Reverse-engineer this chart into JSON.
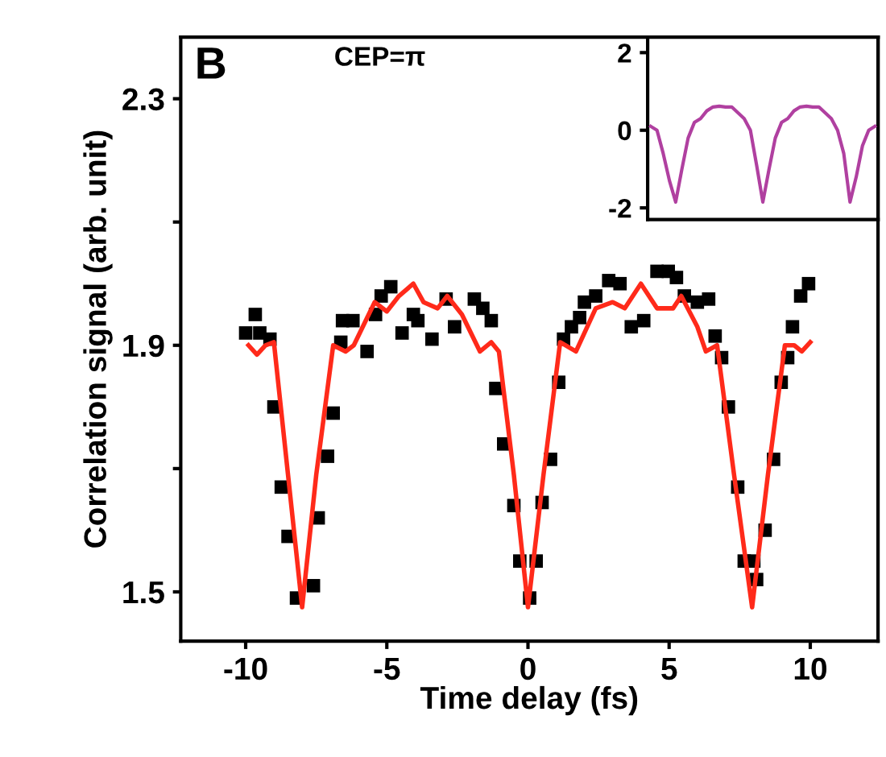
{
  "chart_data": [
    {
      "type": "scatter",
      "xlabel": "Time delay (fs)",
      "ylabel": "Correlation signal (arb. unit)",
      "xlim": [
        -12.3,
        12.4
      ],
      "xticks": [
        -10,
        -5,
        0,
        5,
        10
      ],
      "ylim": [
        1.42,
        2.4
      ],
      "yticks": [
        2.3,
        {
          "value": 2.1,
          "label": null
        },
        1.9,
        {
          "value": 1.7,
          "label": null
        },
        1.5
      ],
      "grid": false,
      "legend": false,
      "annotations": [
        "B",
        "CEP=π"
      ],
      "series": [
        {
          "type": "scatter",
          "marker": "square",
          "color": "#000000",
          "x": [
            -10.0,
            -9.66,
            -9.5,
            -9.14,
            -9.0,
            -8.74,
            -8.5,
            -8.2,
            -7.6,
            -7.43,
            -7.1,
            -6.9,
            -6.63,
            -6.57,
            -6.2,
            -5.7,
            -5.4,
            -5.2,
            -4.86,
            -4.46,
            -4.06,
            -3.9,
            -3.4,
            -2.9,
            -2.6,
            -1.9,
            -1.6,
            -1.3,
            -1.14,
            -0.86,
            -0.5,
            -0.29,
            0.06,
            0.29,
            0.5,
            0.8,
            1.09,
            1.26,
            1.54,
            1.83,
            2.0,
            2.4,
            2.86,
            3.26,
            3.66,
            4.1,
            4.57,
            4.97,
            5.26,
            5.54,
            6.0,
            6.4,
            6.63,
            6.86,
            7.1,
            7.43,
            7.66,
            8.0,
            8.1,
            8.4,
            8.7,
            8.97,
            9.2,
            9.37,
            9.66,
            9.94
          ],
          "values": [
            1.92,
            1.95,
            1.92,
            1.91,
            1.8,
            1.67,
            1.59,
            1.49,
            1.51,
            1.62,
            1.72,
            1.79,
            1.905,
            1.94,
            1.94,
            1.89,
            1.95,
            1.98,
            1.995,
            1.92,
            1.95,
            1.94,
            1.91,
            1.975,
            1.93,
            1.975,
            1.96,
            1.94,
            1.83,
            1.74,
            1.64,
            1.55,
            1.49,
            1.55,
            1.645,
            1.715,
            1.84,
            1.91,
            1.93,
            1.945,
            1.97,
            1.98,
            2.005,
            2.0,
            1.93,
            1.94,
            2.02,
            2.02,
            2.01,
            1.98,
            1.97,
            1.975,
            1.915,
            1.88,
            1.8,
            1.67,
            1.55,
            1.55,
            1.52,
            1.6,
            1.715,
            1.84,
            1.88,
            1.93,
            1.98,
            2.0
          ]
        },
        {
          "type": "line",
          "marker": "none",
          "line_style": "solid",
          "color": "#ff2a1a",
          "x": [
            -9.9,
            -9.6,
            -9.3,
            -9.0,
            -8.5,
            -8.0,
            -7.5,
            -6.9,
            -6.46,
            -6.17,
            -5.43,
            -5.0,
            -4.57,
            -4.06,
            -3.7,
            -3.2,
            -2.86,
            -2.34,
            -1.7,
            -1.3,
            -1.03,
            -0.5,
            0.0,
            0.55,
            1.14,
            1.7,
            2.4,
            3.0,
            3.43,
            4.0,
            4.57,
            5.14,
            5.43,
            6.0,
            6.3,
            6.7,
            7.3,
            7.94,
            8.5,
            9.1,
            9.43,
            9.7,
            10.0
          ],
          "values": [
            1.9,
            1.885,
            1.9,
            1.905,
            1.69,
            1.475,
            1.69,
            1.9,
            1.89,
            1.9,
            1.97,
            1.955,
            1.98,
            2.0,
            1.97,
            1.96,
            1.98,
            1.95,
            1.89,
            1.905,
            1.89,
            1.69,
            1.475,
            1.69,
            1.905,
            1.89,
            1.96,
            1.97,
            1.96,
            2.0,
            1.96,
            1.96,
            1.98,
            1.93,
            1.89,
            1.9,
            1.69,
            1.475,
            1.69,
            1.9,
            1.9,
            1.89,
            1.905
          ]
        }
      ]
    },
    {
      "type": "line",
      "categories": [
        null,
        null,
        null,
        null,
        null,
        null,
        null,
        null,
        null,
        null,
        null,
        null,
        null,
        null,
        null,
        null,
        null,
        null,
        null,
        null,
        null,
        null,
        null,
        null,
        null,
        null,
        null,
        null,
        null,
        null,
        null,
        null,
        null,
        null,
        null,
        null,
        null
      ],
      "ylim": [
        -2.3,
        2.4
      ],
      "yticks": [
        2,
        0,
        -2
      ],
      "tick_labels": "y",
      "grid": false,
      "legend": false,
      "series": [
        {
          "color": "#b040a0",
          "marker": "none",
          "line_style": "solid",
          "values": [
            0.1,
            0.0,
            -0.6,
            -1.3,
            -1.85,
            -1.0,
            -0.2,
            0.2,
            0.3,
            0.5,
            0.6,
            0.62,
            0.6,
            0.6,
            0.45,
            0.3,
            0.0,
            -0.9,
            -1.85,
            -1.0,
            -0.2,
            0.2,
            0.3,
            0.5,
            0.6,
            0.62,
            0.6,
            0.6,
            0.45,
            0.3,
            0.0,
            -0.6,
            -1.85,
            -1.2,
            -0.4,
            0.0,
            0.1
          ]
        }
      ]
    }
  ]
}
